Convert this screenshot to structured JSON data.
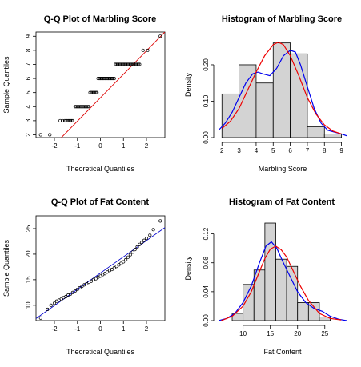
{
  "chart_data": [
    {
      "type": "scatter",
      "panel": "qq",
      "title": "Q-Q Plot of Marbling Score",
      "xlabel": "Theoretical Quantiles",
      "ylabel": "Sample Quantiles",
      "xlim": [
        -2.8,
        2.8
      ],
      "ylim": [
        1.8,
        9.3
      ],
      "x_ticks": [
        -2,
        -1,
        0,
        1,
        2
      ],
      "y_ticks": [
        2,
        3,
        4,
        5,
        6,
        7,
        8,
        9
      ],
      "reference_line": {
        "color": "#dd0000",
        "points": [
          [
            -1.7,
            1.8
          ],
          [
            2.8,
            9.3
          ]
        ]
      },
      "points": [
        [
          -2.6,
          2
        ],
        [
          -2.2,
          2
        ],
        [
          -1.75,
          3
        ],
        [
          -1.65,
          3
        ],
        [
          -1.55,
          3
        ],
        [
          -1.5,
          3
        ],
        [
          -1.45,
          3
        ],
        [
          -1.4,
          3
        ],
        [
          -1.35,
          3
        ],
        [
          -1.3,
          3
        ],
        [
          -1.25,
          3
        ],
        [
          -1.2,
          3
        ],
        [
          -1.1,
          4
        ],
        [
          -1.05,
          4
        ],
        [
          -1.0,
          4
        ],
        [
          -0.95,
          4
        ],
        [
          -0.9,
          4
        ],
        [
          -0.85,
          4
        ],
        [
          -0.8,
          4
        ],
        [
          -0.75,
          4
        ],
        [
          -0.7,
          4
        ],
        [
          -0.65,
          4
        ],
        [
          -0.6,
          4
        ],
        [
          -0.55,
          4
        ],
        [
          -0.5,
          4
        ],
        [
          -0.45,
          5
        ],
        [
          -0.4,
          5
        ],
        [
          -0.35,
          5
        ],
        [
          -0.3,
          5
        ],
        [
          -0.25,
          5
        ],
        [
          -0.2,
          5
        ],
        [
          -0.15,
          5
        ],
        [
          -0.1,
          6
        ],
        [
          -0.05,
          6
        ],
        [
          0.0,
          6
        ],
        [
          0.05,
          6
        ],
        [
          0.1,
          6
        ],
        [
          0.15,
          6
        ],
        [
          0.2,
          6
        ],
        [
          0.25,
          6
        ],
        [
          0.3,
          6
        ],
        [
          0.35,
          6
        ],
        [
          0.4,
          6
        ],
        [
          0.45,
          6
        ],
        [
          0.5,
          6
        ],
        [
          0.55,
          6
        ],
        [
          0.6,
          6
        ],
        [
          0.65,
          7
        ],
        [
          0.7,
          7
        ],
        [
          0.75,
          7
        ],
        [
          0.8,
          7
        ],
        [
          0.85,
          7
        ],
        [
          0.9,
          7
        ],
        [
          0.95,
          7
        ],
        [
          1.0,
          7
        ],
        [
          1.05,
          7
        ],
        [
          1.1,
          7
        ],
        [
          1.15,
          7
        ],
        [
          1.2,
          7
        ],
        [
          1.25,
          7
        ],
        [
          1.3,
          7
        ],
        [
          1.35,
          7
        ],
        [
          1.4,
          7
        ],
        [
          1.45,
          7
        ],
        [
          1.5,
          7
        ],
        [
          1.55,
          7
        ],
        [
          1.6,
          7
        ],
        [
          1.65,
          7
        ],
        [
          1.7,
          7
        ],
        [
          1.85,
          8
        ],
        [
          2.05,
          8
        ],
        [
          2.6,
          9
        ]
      ]
    },
    {
      "type": "bar",
      "panel": "hist",
      "title": "Histogram of Marbling Score",
      "xlabel": "Marbling Score",
      "ylabel": "Density",
      "xlim": [
        1.8,
        9.3
      ],
      "ylim": [
        0,
        0.29
      ],
      "x_ticks": [
        2,
        3,
        4,
        5,
        6,
        7,
        8,
        9
      ],
      "y_ticks": [
        0.0,
        0.1,
        0.2
      ],
      "y_tick_labels": [
        "0.00",
        "0.10",
        "0.20"
      ],
      "bin_edges": [
        2,
        3,
        4,
        5,
        6,
        7,
        8,
        9
      ],
      "values": [
        0.12,
        0.2,
        0.15,
        0.26,
        0.23,
        0.03,
        0.01
      ],
      "series": [
        {
          "color": "#0000ee",
          "x": [
            1.8,
            2.2,
            2.6,
            3.0,
            3.4,
            3.8,
            4.1,
            4.4,
            4.8,
            5.2,
            5.6,
            6.0,
            6.3,
            6.6,
            7.0,
            7.4,
            7.8,
            8.2,
            8.6,
            9.0,
            9.3
          ],
          "y": [
            0.02,
            0.04,
            0.07,
            0.11,
            0.15,
            0.175,
            0.18,
            0.175,
            0.17,
            0.19,
            0.225,
            0.24,
            0.235,
            0.2,
            0.14,
            0.08,
            0.04,
            0.02,
            0.015,
            0.01,
            0.005
          ]
        },
        {
          "color": "#ee0000",
          "x": [
            2.0,
            2.5,
            3.0,
            3.5,
            4.0,
            4.5,
            5.0,
            5.3,
            5.6,
            6.0,
            6.5,
            7.0,
            7.5,
            8.0,
            8.5,
            9.0
          ],
          "y": [
            0.025,
            0.045,
            0.08,
            0.13,
            0.18,
            0.225,
            0.255,
            0.262,
            0.255,
            0.225,
            0.17,
            0.11,
            0.065,
            0.035,
            0.018,
            0.01
          ]
        }
      ]
    },
    {
      "type": "scatter",
      "panel": "qq",
      "title": "Q-Q Plot of Fat Content",
      "xlabel": "Theoretical Quantiles",
      "ylabel": "Sample Quantiles",
      "xlim": [
        -2.8,
        2.8
      ],
      "ylim": [
        7,
        27.5
      ],
      "x_ticks": [
        -2,
        -1,
        0,
        1,
        2
      ],
      "y_ticks": [
        10,
        15,
        20,
        25
      ],
      "reference_line": {
        "color": "#0000cc",
        "points": [
          [
            -2.8,
            7.4
          ],
          [
            2.8,
            25.2
          ]
        ]
      },
      "points": [
        [
          -2.6,
          7.5
        ],
        [
          -2.3,
          9.2
        ],
        [
          -2.15,
          10.0
        ],
        [
          -2.0,
          10.4
        ],
        [
          -1.9,
          10.8
        ],
        [
          -1.8,
          11.0
        ],
        [
          -1.7,
          11.2
        ],
        [
          -1.6,
          11.5
        ],
        [
          -1.5,
          11.7
        ],
        [
          -1.4,
          12.0
        ],
        [
          -1.3,
          12.2
        ],
        [
          -1.2,
          12.5
        ],
        [
          -1.1,
          12.8
        ],
        [
          -1.0,
          13.1
        ],
        [
          -0.9,
          13.4
        ],
        [
          -0.8,
          13.7
        ],
        [
          -0.7,
          14.0
        ],
        [
          -0.6,
          14.2
        ],
        [
          -0.5,
          14.5
        ],
        [
          -0.4,
          14.7
        ],
        [
          -0.3,
          15.0
        ],
        [
          -0.2,
          15.2
        ],
        [
          -0.1,
          15.5
        ],
        [
          0.0,
          15.7
        ],
        [
          0.1,
          16.0
        ],
        [
          0.2,
          16.2
        ],
        [
          0.3,
          16.5
        ],
        [
          0.4,
          16.8
        ],
        [
          0.5,
          17.0
        ],
        [
          0.6,
          17.3
        ],
        [
          0.7,
          17.6
        ],
        [
          0.8,
          17.9
        ],
        [
          0.9,
          18.2
        ],
        [
          1.0,
          18.5
        ],
        [
          1.1,
          18.9
        ],
        [
          1.2,
          19.4
        ],
        [
          1.3,
          19.9
        ],
        [
          1.4,
          20.4
        ],
        [
          1.5,
          20.9
        ],
        [
          1.6,
          21.4
        ],
        [
          1.7,
          21.9
        ],
        [
          1.8,
          22.3
        ],
        [
          1.9,
          22.7
        ],
        [
          2.0,
          23.1
        ],
        [
          2.15,
          23.7
        ],
        [
          2.3,
          24.8
        ],
        [
          2.6,
          26.5
        ]
      ]
    },
    {
      "type": "bar",
      "panel": "hist",
      "title": "Histogram of Fat Content",
      "xlabel": "Fat Content",
      "ylabel": "Density",
      "xlim": [
        5.5,
        29
      ],
      "ylim": [
        0,
        0.145
      ],
      "x_ticks": [
        10,
        15,
        20,
        25
      ],
      "y_ticks": [
        0.0,
        0.04,
        0.08,
        0.12
      ],
      "y_tick_labels": [
        "0.00",
        "0.04",
        "0.08",
        "0.12"
      ],
      "bin_edges": [
        6,
        8,
        10,
        12,
        14,
        16,
        18,
        20,
        22,
        24,
        26,
        28
      ],
      "values": [
        0.0,
        0.01,
        0.05,
        0.07,
        0.135,
        0.085,
        0.075,
        0.025,
        0.025,
        0.005,
        0.0
      ],
      "series": [
        {
          "color": "#0000ee",
          "x": [
            5.5,
            7,
            8.5,
            10,
            11.5,
            13,
            14.2,
            15.2,
            16.2,
            17.2,
            18.5,
            20,
            21.5,
            23,
            24.5,
            26,
            27.5,
            29
          ],
          "y": [
            0.0,
            0.003,
            0.01,
            0.025,
            0.048,
            0.08,
            0.103,
            0.109,
            0.1,
            0.083,
            0.063,
            0.04,
            0.025,
            0.017,
            0.013,
            0.006,
            0.002,
            0.0
          ]
        },
        {
          "color": "#ee0000",
          "x": [
            6,
            8,
            10,
            11.5,
            13,
            14,
            15,
            16,
            17,
            18,
            19,
            20.5,
            22,
            24,
            26,
            28
          ],
          "y": [
            0.0,
            0.006,
            0.02,
            0.04,
            0.068,
            0.086,
            0.099,
            0.103,
            0.098,
            0.088,
            0.072,
            0.048,
            0.028,
            0.01,
            0.003,
            0.001
          ]
        }
      ]
    }
  ]
}
